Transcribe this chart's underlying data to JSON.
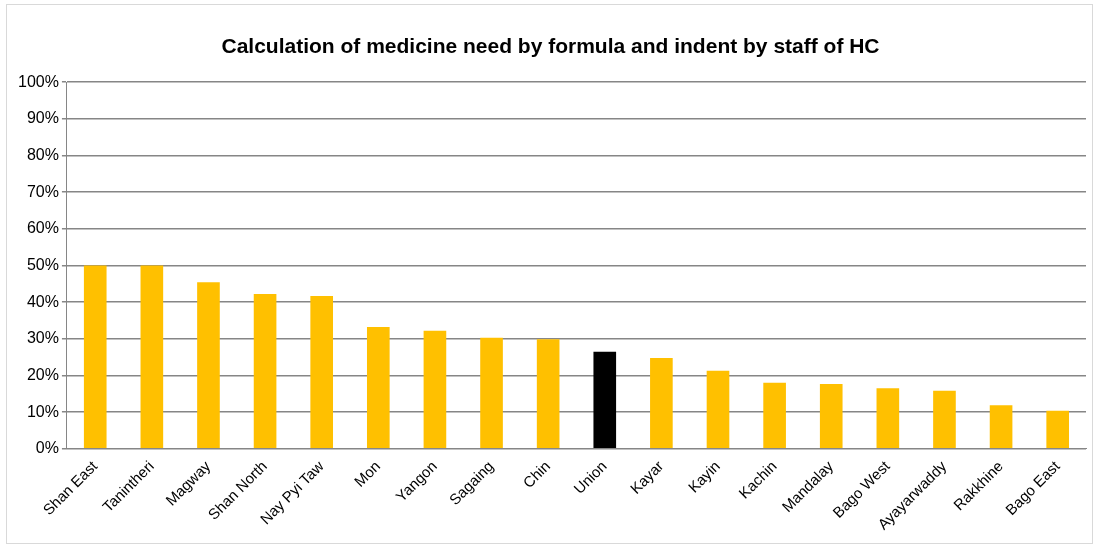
{
  "chart_data": {
    "type": "bar",
    "title": "Calculation of medicine need by formula and indent by staff of HC",
    "categories": [
      "Shan East",
      "Tanintheri",
      "Magway",
      "Shan North",
      "Nay Pyi Taw",
      "Mon",
      "Yangon",
      "Sagaing",
      "Chin",
      "Union",
      "Kayar",
      "Kayin",
      "Kachin",
      "Mandalay",
      "Bago West",
      "Ayayarwaddy",
      "Rakkhine",
      "Bago East"
    ],
    "values": [
      50,
      50,
      45.4,
      42.2,
      41.7,
      33.2,
      32.2,
      30.3,
      29.9,
      26.5,
      24.8,
      21.3,
      18.0,
      17.7,
      16.5,
      15.8,
      11.9,
      10.4
    ],
    "colors": [
      "#ffc000",
      "#ffc000",
      "#ffc000",
      "#ffc000",
      "#ffc000",
      "#ffc000",
      "#ffc000",
      "#ffc000",
      "#ffc000",
      "#000000",
      "#ffc000",
      "#ffc000",
      "#ffc000",
      "#ffc000",
      "#ffc000",
      "#ffc000",
      "#ffc000",
      "#ffc000"
    ],
    "ylim": [
      0,
      100
    ],
    "yticks": [
      {
        "value": 0,
        "label": "0%"
      },
      {
        "value": 10,
        "label": "10%"
      },
      {
        "value": 20,
        "label": "20%"
      },
      {
        "value": 30,
        "label": "30%"
      },
      {
        "value": 40,
        "label": "40%"
      },
      {
        "value": 50,
        "label": "50%"
      },
      {
        "value": 60,
        "label": "60%"
      },
      {
        "value": 70,
        "label": "70%"
      },
      {
        "value": 80,
        "label": "80%"
      },
      {
        "value": 90,
        "label": "90%"
      },
      {
        "value": 100,
        "label": "100%"
      }
    ],
    "grid": "y"
  }
}
